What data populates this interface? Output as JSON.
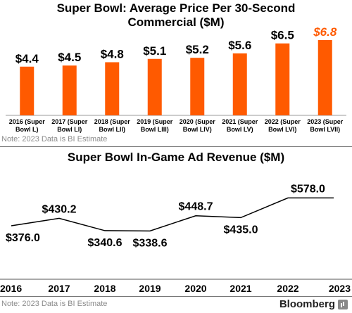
{
  "colors": {
    "bar": "#ff5a00",
    "estimate_label": "#ff5a00",
    "line": "#000000",
    "note": "#8a8a8a"
  },
  "chart_data": [
    {
      "type": "bar",
      "title": "Super Bowl: Average Price Per 30-Second Commercial ($M)",
      "title_lines": [
        "Super Bowl: Average Price Per 30-Second",
        "Commercial ($M)"
      ],
      "categories": [
        [
          "2016 (Super",
          "Bowl L)"
        ],
        [
          "2017 (Super",
          "Bowl LI)"
        ],
        [
          "2018 (Super",
          "Bowl LII)"
        ],
        [
          "2019 (Super",
          "Bowl LIII)"
        ],
        [
          "2020 (Super",
          "Bowl LIV)"
        ],
        [
          "2021 (Super",
          "Bowl LV)"
        ],
        [
          "2022 (Super",
          "Bowl LVI)"
        ],
        [
          "2023 (Super",
          "Bowl LVII)"
        ]
      ],
      "values": [
        4.4,
        4.5,
        4.8,
        5.1,
        5.2,
        5.6,
        6.5,
        6.8
      ],
      "value_labels": [
        "$4.4",
        "$4.5",
        "$4.8",
        "$5.1",
        "$5.2",
        "$5.6",
        "$6.5",
        "$6.8"
      ],
      "estimate_index": 7,
      "ylim": [
        0,
        6.8
      ],
      "grid": false,
      "note": "Note: 2023 Data is BI Estimate"
    },
    {
      "type": "line",
      "title": "Super Bowl In-Game Ad Revenue ($M)",
      "x": [
        "2016",
        "2017",
        "2018",
        "2019",
        "2020",
        "2021",
        "2022",
        "2023"
      ],
      "values": [
        376.0,
        430.2,
        340.6,
        338.6,
        448.7,
        435.0,
        578.0,
        578.0
      ],
      "value_labels": [
        "$376.0",
        "$430.2",
        "$340.6",
        "$338.6",
        "$448.7",
        "$435.0",
        "$578.0",
        ""
      ],
      "label_positions": [
        "below",
        "above",
        "below",
        "below",
        "above",
        "below",
        "above",
        ""
      ],
      "ylim": [
        330,
        580
      ],
      "grid": false,
      "note": "Note: 2023 Data is BI Estimate"
    }
  ],
  "footer": {
    "brand": "Bloomberg"
  }
}
